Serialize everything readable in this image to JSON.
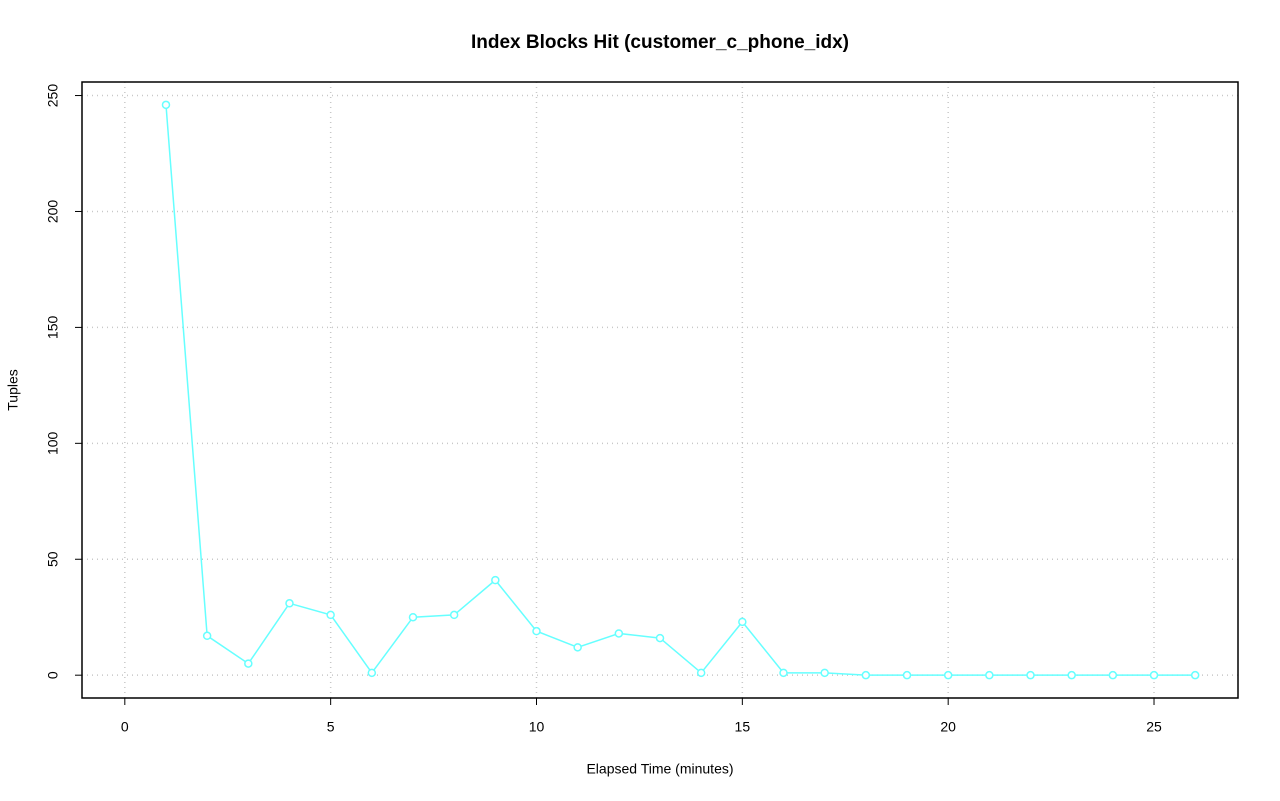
{
  "chart_data": {
    "type": "line",
    "title": "Index Blocks Hit (customer_c_phone_idx)",
    "x_label": "Elapsed Time (minutes)",
    "y_label": "Tuples",
    "x": [
      1,
      2,
      3,
      4,
      5,
      6,
      7,
      8,
      9,
      10,
      11,
      12,
      13,
      14,
      15,
      16,
      17,
      18,
      19,
      20,
      21,
      22,
      23,
      24,
      25,
      26
    ],
    "series": [
      {
        "color": "#66ffff",
        "values": [
          246,
          17,
          5,
          31,
          26,
          1,
          25,
          26,
          41,
          19,
          12,
          18,
          16,
          1,
          23,
          1,
          1,
          0,
          0,
          0,
          0,
          0,
          0,
          0,
          0,
          0
        ]
      }
    ],
    "xlim": [
      -1.04,
      27.04
    ],
    "xticks": [
      0,
      5,
      10,
      15,
      20,
      25
    ],
    "ylim": [
      -9.84,
      255.84
    ],
    "yticks": [
      0,
      50,
      100,
      150,
      200,
      250
    ],
    "grid": true
  }
}
